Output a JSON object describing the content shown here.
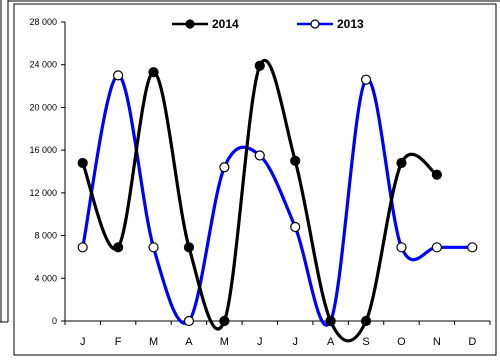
{
  "chart_data": {
    "type": "line",
    "categories": [
      "J",
      "F",
      "M",
      "A",
      "M",
      "J",
      "J",
      "A",
      "S",
      "O",
      "N",
      "D"
    ],
    "ylim": [
      0,
      28000
    ],
    "yticks": [
      0,
      4000,
      8000,
      12000,
      16000,
      20000,
      24000,
      28000
    ],
    "ytick_labels": [
      "0",
      "4 000",
      "8 000",
      "12 000",
      "16 000",
      "20 000",
      "24 000",
      "28 000"
    ],
    "grid": false,
    "legend_position": "top",
    "smooth": true,
    "series": [
      {
        "name": "2014",
        "color": "#000000",
        "marker_fill": "#000000",
        "values": [
          14800,
          6900,
          23300,
          6900,
          0,
          23900,
          15000,
          0,
          0,
          14800,
          13700,
          null
        ]
      },
      {
        "name": "2013",
        "color": "#0000ff",
        "marker_fill": "#ffffff",
        "values": [
          6900,
          23000,
          6900,
          0,
          14400,
          15500,
          8800,
          0,
          22600,
          6900,
          6900,
          6900
        ]
      }
    ]
  }
}
